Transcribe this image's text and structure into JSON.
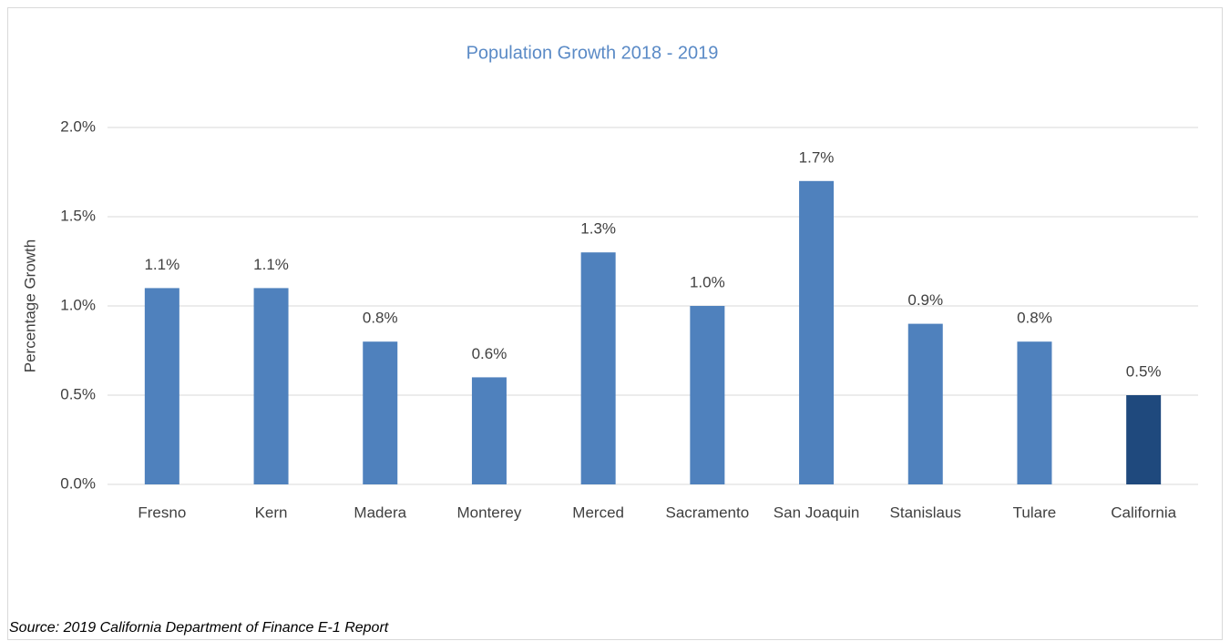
{
  "chart_data": {
    "type": "bar",
    "title": "Population Growth 2018 - 2019",
    "y_label": "Percentage Growth",
    "source": "Source: 2019 California Department of Finance E-1 Report",
    "categories": [
      "Fresno",
      "Kern",
      "Madera",
      "Monterey",
      "Merced",
      "Sacramento",
      "San Joaquin",
      "Stanislaus",
      "Tulare",
      "California"
    ],
    "values": [
      1.1,
      1.1,
      0.8,
      0.6,
      1.3,
      1.0,
      1.7,
      0.9,
      0.8,
      0.5
    ],
    "value_labels": [
      "1.1%",
      "1.1%",
      "0.8%",
      "0.6%",
      "1.3%",
      "1.0%",
      "1.7%",
      "0.9%",
      "0.8%",
      "0.5%"
    ],
    "colors": [
      "#4f81bd",
      "#4f81bd",
      "#4f81bd",
      "#4f81bd",
      "#4f81bd",
      "#4f81bd",
      "#4f81bd",
      "#4f81bd",
      "#4f81bd",
      "#1f497d"
    ],
    "ylim": [
      0,
      2.0
    ],
    "yticks": [
      {
        "value": 0,
        "label": "0.0%"
      },
      {
        "value": 0.5,
        "label": "0.5%"
      },
      {
        "value": 1.0,
        "label": "1.0%"
      },
      {
        "value": 1.5,
        "label": "1.5%"
      },
      {
        "value": 2.0,
        "label": "2.0%"
      }
    ],
    "grid": true
  }
}
